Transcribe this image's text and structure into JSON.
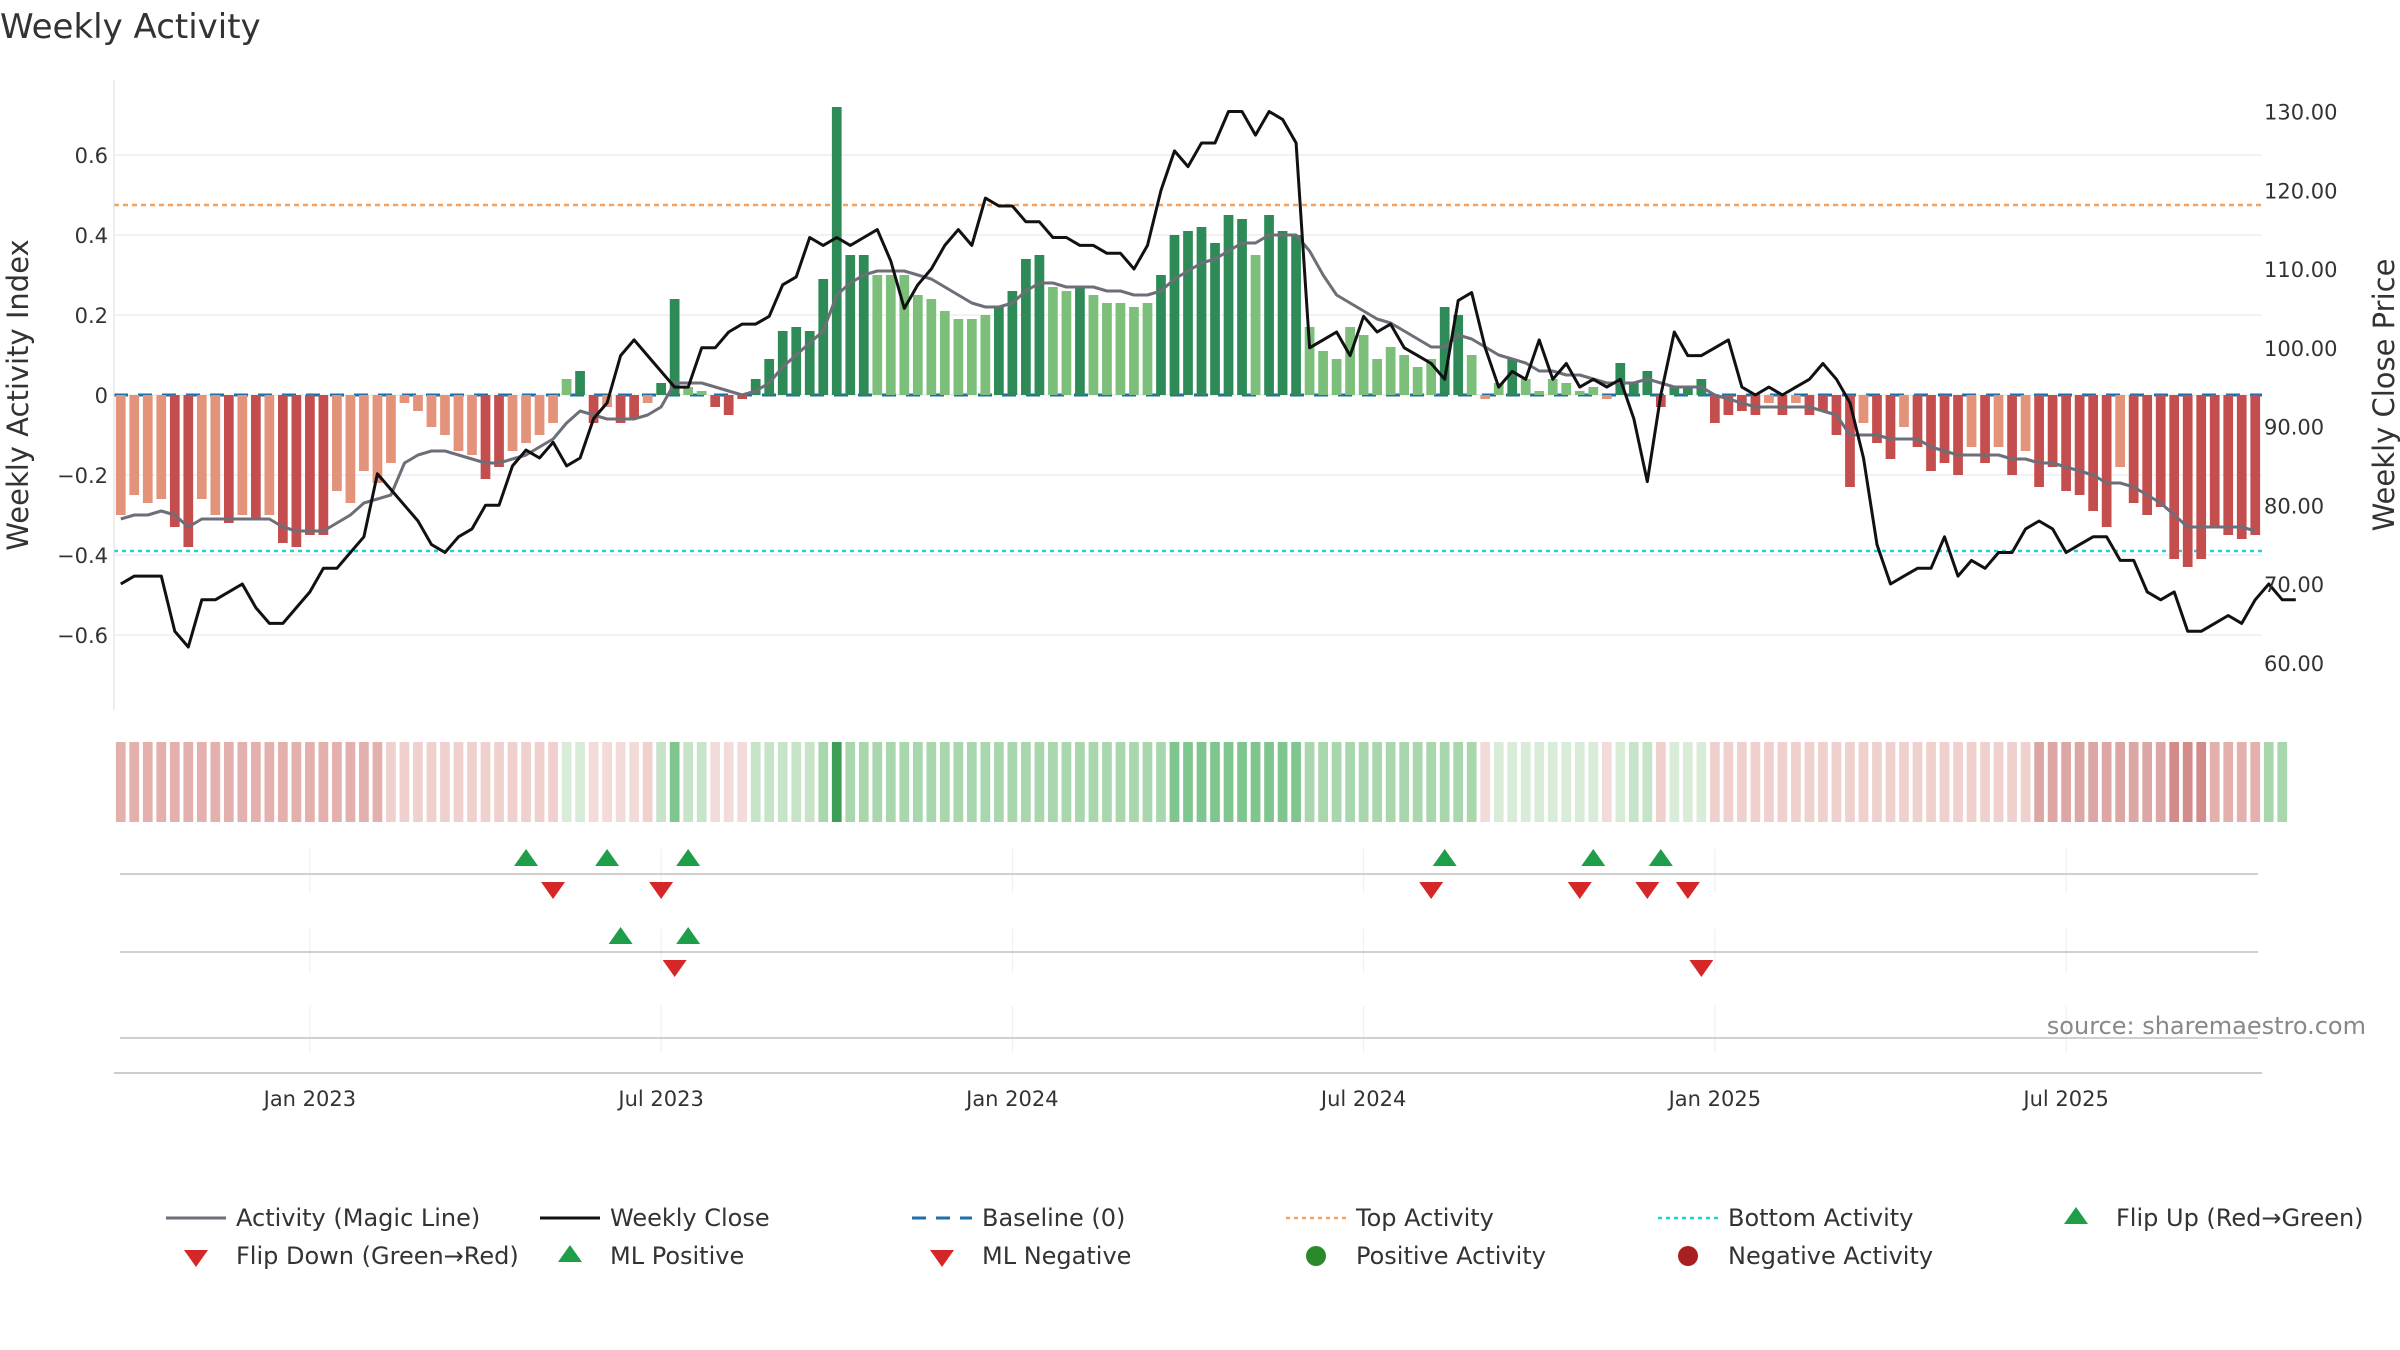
{
  "colors": {
    "strong_red": "#c44e4e",
    "light_red": "#e3937a",
    "strong_green": "#2e8b57",
    "light_green": "#7bbf7b",
    "magic_line": "#6e6e78",
    "close_line": "#111111",
    "baseline": "#1f6fa8",
    "top_line": "#f4a460",
    "bottom_line": "#1fd3d3",
    "marker_green": "#1f9e4a",
    "marker_red": "#d62728",
    "grid": "#e6e6e6"
  },
  "chart_data": {
    "type": "bar+line",
    "title": "Weekly Activity",
    "ylabel_left": "Weekly Activity Index",
    "ylabel_right": "Weekly Close Price",
    "ylim_left": [
      -0.78,
      0.78
    ],
    "ylim_right": [
      54,
      134
    ],
    "left_ticks": [
      {
        "v": 0.6,
        "label": "0.6"
      },
      {
        "v": 0.4,
        "label": "0.4"
      },
      {
        "v": 0.2,
        "label": "0.2"
      },
      {
        "v": 0,
        "label": "0"
      },
      {
        "v": -0.2,
        "label": "−0.2"
      },
      {
        "v": -0.4,
        "label": "−0.4"
      },
      {
        "v": -0.6,
        "label": "−0.6"
      }
    ],
    "right_ticks": [
      {
        "v": 130,
        "label": "130.00"
      },
      {
        "v": 120,
        "label": "120.00"
      },
      {
        "v": 110,
        "label": "110.00"
      },
      {
        "v": 100,
        "label": "100.00"
      },
      {
        "v": 90,
        "label": "90.00"
      },
      {
        "v": 80,
        "label": "80.00"
      },
      {
        "v": 70,
        "label": "70.00"
      },
      {
        "v": 60,
        "label": "60.00"
      }
    ],
    "x_range_weeks": [
      0,
      156
    ],
    "x_ticks": [
      {
        "week": 14.5,
        "label": "Jan 2023"
      },
      {
        "week": 40.5,
        "label": "Jul 2023"
      },
      {
        "week": 66.5,
        "label": "Jan 2024"
      },
      {
        "week": 92.5,
        "label": "Jul 2024"
      },
      {
        "week": 118.5,
        "label": "Jan 2025"
      },
      {
        "week": 144.5,
        "label": "Jul 2025"
      }
    ],
    "top_activity": 0.475,
    "bottom_activity": -0.39,
    "baseline": 0,
    "activity": [
      -0.3,
      -0.25,
      -0.27,
      -0.26,
      -0.33,
      -0.38,
      -0.26,
      -0.3,
      -0.32,
      -0.3,
      -0.31,
      -0.3,
      -0.37,
      -0.38,
      -0.35,
      -0.35,
      -0.24,
      -0.27,
      -0.19,
      -0.22,
      -0.17,
      -0.02,
      -0.04,
      -0.08,
      -0.1,
      -0.14,
      -0.15,
      -0.21,
      -0.18,
      -0.14,
      -0.12,
      -0.1,
      -0.07,
      0.04,
      0.06,
      -0.07,
      -0.03,
      -0.07,
      -0.06,
      -0.02,
      0.03,
      0.24,
      0.02,
      0.01,
      -0.03,
      -0.05,
      -0.01,
      0.04,
      0.09,
      0.16,
      0.17,
      0.16,
      0.29,
      0.72,
      0.35,
      0.35,
      0.3,
      0.3,
      0.3,
      0.25,
      0.24,
      0.21,
      0.19,
      0.19,
      0.2,
      0.22,
      0.26,
      0.34,
      0.35,
      0.27,
      0.26,
      0.27,
      0.25,
      0.23,
      0.23,
      0.22,
      0.23,
      0.3,
      0.4,
      0.41,
      0.42,
      0.38,
      0.45,
      0.44,
      0.35,
      0.45,
      0.41,
      0.4,
      0.17,
      0.11,
      0.09,
      0.17,
      0.15,
      0.09,
      0.12,
      0.1,
      0.07,
      0.09,
      0.22,
      0.2,
      0.1,
      -0.01,
      0.03,
      0.09,
      0.04,
      0.01,
      0.04,
      0.03,
      0.01,
      0.02,
      -0.01,
      0.08,
      0.03,
      0.06,
      -0.03,
      0.02,
      0.02,
      0.04,
      -0.07,
      -0.05,
      -0.04,
      -0.05,
      -0.02,
      -0.05,
      -0.02,
      -0.05,
      -0.04,
      -0.1,
      -0.23,
      -0.07,
      -0.12,
      -0.16,
      -0.08,
      -0.13,
      -0.19,
      -0.17,
      -0.2,
      -0.13,
      -0.17,
      -0.13,
      -0.2,
      -0.14,
      -0.23,
      -0.18,
      -0.24,
      -0.25,
      -0.29,
      -0.33,
      -0.18,
      -0.27,
      -0.3,
      -0.28,
      -0.41,
      -0.43,
      -0.41,
      -0.33,
      -0.35,
      -0.36,
      -0.35
    ],
    "magic_line": [
      -0.31,
      -0.3,
      -0.3,
      -0.29,
      -0.3,
      -0.33,
      -0.31,
      -0.31,
      -0.31,
      -0.31,
      -0.31,
      -0.31,
      -0.33,
      -0.34,
      -0.34,
      -0.34,
      -0.32,
      -0.3,
      -0.27,
      -0.26,
      -0.25,
      -0.17,
      -0.15,
      -0.14,
      -0.14,
      -0.15,
      -0.16,
      -0.17,
      -0.17,
      -0.16,
      -0.15,
      -0.13,
      -0.11,
      -0.07,
      -0.04,
      -0.05,
      -0.06,
      -0.06,
      -0.06,
      -0.05,
      -0.03,
      0.03,
      0.03,
      0.03,
      0.02,
      0.01,
      0.0,
      0.01,
      0.03,
      0.07,
      0.1,
      0.13,
      0.16,
      0.25,
      0.28,
      0.3,
      0.31,
      0.31,
      0.31,
      0.3,
      0.29,
      0.27,
      0.25,
      0.23,
      0.22,
      0.22,
      0.23,
      0.26,
      0.28,
      0.28,
      0.27,
      0.27,
      0.27,
      0.26,
      0.26,
      0.25,
      0.25,
      0.26,
      0.29,
      0.31,
      0.33,
      0.34,
      0.36,
      0.38,
      0.38,
      0.4,
      0.4,
      0.4,
      0.36,
      0.3,
      0.25,
      0.23,
      0.21,
      0.19,
      0.18,
      0.16,
      0.14,
      0.12,
      0.12,
      0.15,
      0.14,
      0.12,
      0.1,
      0.09,
      0.08,
      0.06,
      0.06,
      0.05,
      0.05,
      0.04,
      0.03,
      0.03,
      0.03,
      0.04,
      0.03,
      0.02,
      0.02,
      0.02,
      0.0,
      -0.01,
      -0.02,
      -0.03,
      -0.03,
      -0.03,
      -0.03,
      -0.03,
      -0.04,
      -0.05,
      -0.1,
      -0.1,
      -0.1,
      -0.11,
      -0.11,
      -0.11,
      -0.13,
      -0.14,
      -0.15,
      -0.15,
      -0.15,
      -0.15,
      -0.16,
      -0.16,
      -0.17,
      -0.17,
      -0.18,
      -0.19,
      -0.2,
      -0.22,
      -0.22,
      -0.23,
      -0.25,
      -0.27,
      -0.3,
      -0.33,
      -0.33,
      -0.33,
      -0.33,
      -0.33,
      -0.34
    ],
    "weekly_close": [
      70,
      71,
      71,
      71,
      64,
      62,
      68,
      68,
      69,
      70,
      67,
      65,
      65,
      67,
      69,
      72,
      72,
      74,
      76,
      84,
      82,
      80,
      78,
      75,
      74,
      76,
      77,
      80,
      80,
      85,
      87,
      86,
      88,
      85,
      86,
      91,
      93,
      99,
      101,
      99,
      97,
      95,
      95,
      100,
      100,
      102,
      103,
      103,
      104,
      108,
      109,
      114,
      113,
      114,
      113,
      114,
      115,
      111,
      105,
      108,
      110,
      113,
      115,
      113,
      119,
      118,
      118,
      116,
      116,
      114,
      114,
      113,
      113,
      112,
      112,
      110,
      113,
      120,
      125,
      123,
      126,
      126,
      130,
      130,
      127,
      130,
      129,
      126,
      100,
      101,
      102,
      99,
      104,
      102,
      103,
      100,
      99,
      98,
      96,
      106,
      107,
      100,
      95,
      97,
      96,
      101,
      96,
      98,
      95,
      96,
      95,
      96,
      91,
      83,
      94,
      102,
      99,
      99,
      100,
      101,
      95,
      94,
      95,
      94,
      95,
      96,
      98,
      96,
      93,
      86,
      75,
      70,
      71,
      72,
      72,
      76,
      71,
      73,
      72,
      74,
      74,
      77,
      78,
      77,
      74,
      75,
      76,
      76,
      73,
      73,
      69,
      68,
      69,
      64,
      64,
      65,
      66,
      65,
      68,
      70,
      68,
      68
    ],
    "strip": [
      3,
      3,
      3,
      3,
      3,
      3,
      3,
      3,
      3,
      3,
      3,
      3,
      3,
      3,
      3,
      3,
      3,
      3,
      3,
      3,
      2,
      2,
      2,
      2,
      2,
      2,
      2,
      2,
      2,
      2,
      2,
      2,
      2,
      1,
      1,
      1,
      1,
      1,
      1,
      2,
      2,
      4,
      2,
      2,
      1,
      1,
      1,
      2,
      2,
      2,
      2,
      2,
      3,
      5,
      3,
      3,
      3,
      3,
      3,
      3,
      3,
      3,
      3,
      3,
      3,
      3,
      3,
      3,
      3,
      3,
      3,
      3,
      3,
      3,
      3,
      3,
      3,
      3,
      4,
      4,
      4,
      4,
      4,
      4,
      4,
      4,
      4,
      4,
      3,
      3,
      3,
      3,
      3,
      3,
      3,
      3,
      3,
      3,
      3,
      3,
      3,
      1,
      1,
      1,
      1,
      1,
      1,
      1,
      1,
      1,
      1,
      1,
      2,
      2,
      2,
      1,
      1,
      1,
      2,
      2,
      2,
      2,
      2,
      2,
      2,
      2,
      2,
      2,
      2,
      2,
      2,
      2,
      2,
      2,
      2,
      2,
      2,
      2,
      2,
      2,
      2,
      2,
      2,
      2,
      2,
      2,
      2,
      2,
      2,
      2,
      2,
      3,
      3,
      3,
      3,
      3,
      3,
      3,
      3,
      3,
      3
    ],
    "flip_up": [
      30,
      36,
      42,
      98,
      109,
      114
    ],
    "flip_down": [
      32,
      40,
      97,
      108,
      113,
      116
    ],
    "ml_positive": [
      37,
      42
    ],
    "ml_negative": [
      41,
      117
    ],
    "legend": [
      {
        "label": "Activity (Magic Line)",
        "kind": "line",
        "color": "#6e6e78"
      },
      {
        "label": "Weekly Close",
        "kind": "line",
        "color": "#111111"
      },
      {
        "label": "Baseline (0)",
        "kind": "dashed",
        "color": "#1f6fa8"
      },
      {
        "label": "Top Activity",
        "kind": "dotted",
        "color": "#f4a460"
      },
      {
        "label": "Bottom Activity",
        "kind": "dotted",
        "color": "#1fd3d3"
      },
      {
        "label": "Flip Up (Red→Green)",
        "kind": "tri-up",
        "color": "#1f9e4a"
      },
      {
        "label": "Flip Down (Green→Red)",
        "kind": "tri-down",
        "color": "#d62728"
      },
      {
        "label": "ML Positive",
        "kind": "tri-up",
        "color": "#1f9e4a"
      },
      {
        "label": "ML Negative",
        "kind": "tri-down",
        "color": "#d62728"
      },
      {
        "label": "Positive Activity",
        "kind": "dot",
        "color": "#2a8a2a"
      },
      {
        "label": "Negative Activity",
        "kind": "dot",
        "color": "#a82020"
      }
    ],
    "source": "source: sharemaestro.com"
  }
}
